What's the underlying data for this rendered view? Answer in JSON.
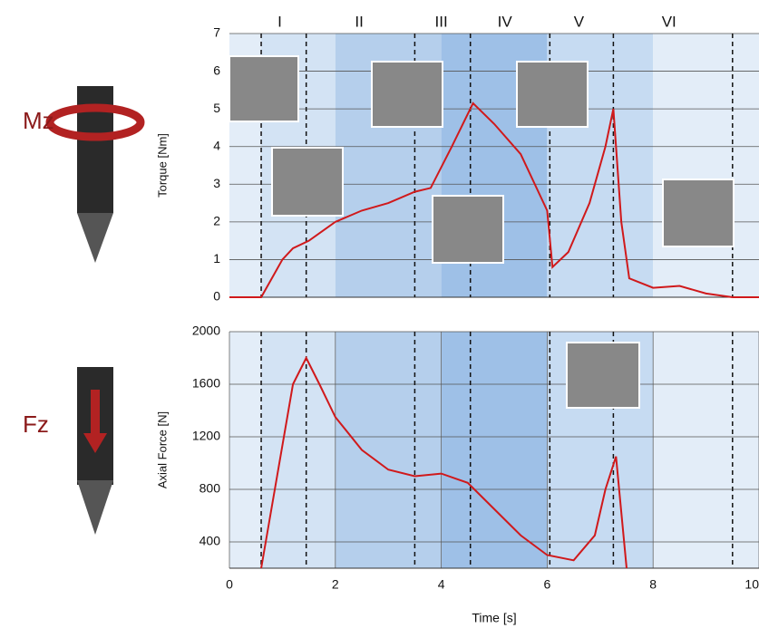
{
  "side_labels": [
    "Mz",
    "Fz"
  ],
  "chart_data": [
    {
      "type": "line",
      "ylabel": "Torque [Nm]",
      "xlim": [
        0,
        10
      ],
      "ylim": [
        0,
        7
      ],
      "yticks": [
        0,
        1,
        2,
        3,
        4,
        5,
        6,
        7
      ],
      "grid": true,
      "bands": [
        {
          "start": 0,
          "end": 0.6,
          "color": "#e3edf8"
        },
        {
          "start": 0.6,
          "end": 2,
          "color": "#d3e3f4"
        },
        {
          "start": 2,
          "end": 4,
          "color": "#b5cfec"
        },
        {
          "start": 4,
          "end": 6,
          "color": "#9ec0e7"
        },
        {
          "start": 6,
          "end": 8,
          "color": "#c6dbf2"
        },
        {
          "start": 8,
          "end": 10,
          "color": "#e3edf8"
        }
      ],
      "phase_lines": [
        0.6,
        1.45,
        3.5,
        4.55,
        6.05,
        7.25,
        9.5
      ],
      "annotations": [
        {
          "text": "I",
          "x": 0.95
        },
        {
          "text": "II",
          "x": 2.45
        },
        {
          "text": "III",
          "x": 4.0
        },
        {
          "text": "IV",
          "x": 5.2
        },
        {
          "text": "V",
          "x": 6.6
        },
        {
          "text": "VI",
          "x": 8.3
        }
      ],
      "x": [
        0,
        0.6,
        0.8,
        1.0,
        1.2,
        1.5,
        2.0,
        2.5,
        3.0,
        3.5,
        3.8,
        4.2,
        4.6,
        5.0,
        5.5,
        6.0,
        6.1,
        6.4,
        6.8,
        7.1,
        7.25,
        7.4,
        7.55,
        8.0,
        8.5,
        9.0,
        9.5,
        10
      ],
      "series": [
        {
          "color": "#d0191b",
          "values": [
            0,
            0,
            0.5,
            1.0,
            1.3,
            1.5,
            2.0,
            2.3,
            2.5,
            2.8,
            2.9,
            4.0,
            5.15,
            4.6,
            3.8,
            2.3,
            0.8,
            1.2,
            2.5,
            4.0,
            5.0,
            2.0,
            0.5,
            0.25,
            0.3,
            0.1,
            0,
            0
          ]
        }
      ]
    },
    {
      "type": "line",
      "ylabel": "Axial Force [N]",
      "xlabel": "Time [s]",
      "xlim": [
        0,
        10
      ],
      "ylim": [
        200,
        2000
      ],
      "yticks": [
        400,
        800,
        1200,
        1600,
        2000
      ],
      "xticks": [
        0,
        2,
        4,
        6,
        8,
        10
      ],
      "grid": true,
      "bands": [
        {
          "start": 0,
          "end": 0.6,
          "color": "#e3edf8"
        },
        {
          "start": 0.6,
          "end": 2,
          "color": "#d3e3f4"
        },
        {
          "start": 2,
          "end": 4,
          "color": "#b5cfec"
        },
        {
          "start": 4,
          "end": 6,
          "color": "#9ec0e7"
        },
        {
          "start": 6,
          "end": 8,
          "color": "#c6dbf2"
        },
        {
          "start": 8,
          "end": 10,
          "color": "#e3edf8"
        }
      ],
      "phase_lines": [
        0.6,
        1.45,
        3.5,
        4.55,
        6.05,
        7.25,
        9.5
      ],
      "x": [
        0.6,
        0.9,
        1.2,
        1.45,
        1.7,
        2.0,
        2.5,
        3.0,
        3.5,
        4.0,
        4.5,
        5.0,
        5.5,
        6.0,
        6.5,
        6.9,
        7.1,
        7.3,
        7.5
      ],
      "series": [
        {
          "color": "#d0191b",
          "values": [
            200,
            900,
            1600,
            1800,
            1600,
            1350,
            1100,
            950,
            900,
            920,
            850,
            650,
            450,
            300,
            260,
            450,
            800,
            1050,
            200
          ]
        }
      ]
    }
  ]
}
